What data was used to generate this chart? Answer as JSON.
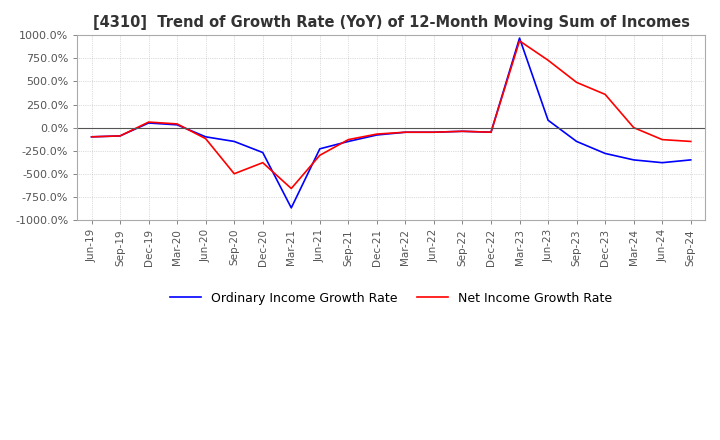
{
  "title": "[4310]  Trend of Growth Rate (YoY) of 12-Month Moving Sum of Incomes",
  "ylim": [
    -1000,
    1000
  ],
  "yticks": [
    1000,
    750,
    500,
    250,
    0,
    -250,
    -500,
    -750,
    -1000
  ],
  "ytick_labels": [
    "1000.0%",
    "750.0%",
    "500.0%",
    "250.0%",
    "0.0%",
    "-250.0%",
    "-500.0%",
    "-750.0%",
    "-1000.0%"
  ],
  "background_color": "#ffffff",
  "grid_color": "#aaaaaa",
  "ordinary_color": "#0000ff",
  "net_color": "#ff0000",
  "legend_ordinary": "Ordinary Income Growth Rate",
  "legend_net": "Net Income Growth Rate",
  "dates": [
    "Jun-19",
    "Sep-19",
    "Dec-19",
    "Mar-20",
    "Jun-20",
    "Sep-20",
    "Dec-20",
    "Mar-21",
    "Jun-21",
    "Sep-21",
    "Dec-21",
    "Mar-22",
    "Jun-22",
    "Sep-22",
    "Dec-22",
    "Mar-23",
    "Jun-23",
    "Sep-23",
    "Dec-23",
    "Mar-24",
    "Jun-24",
    "Sep-24"
  ],
  "ordinary_values": [
    -100,
    -90,
    50,
    30,
    -100,
    -150,
    -270,
    -870,
    -230,
    -150,
    -80,
    -50,
    -50,
    -40,
    -50,
    970,
    80,
    -150,
    -280,
    -350,
    -380,
    -350
  ],
  "net_values": [
    -100,
    -90,
    60,
    40,
    -120,
    -500,
    -380,
    -660,
    -300,
    -130,
    -70,
    -50,
    -50,
    -40,
    -50,
    940,
    730,
    490,
    360,
    0,
    -130,
    -150
  ]
}
